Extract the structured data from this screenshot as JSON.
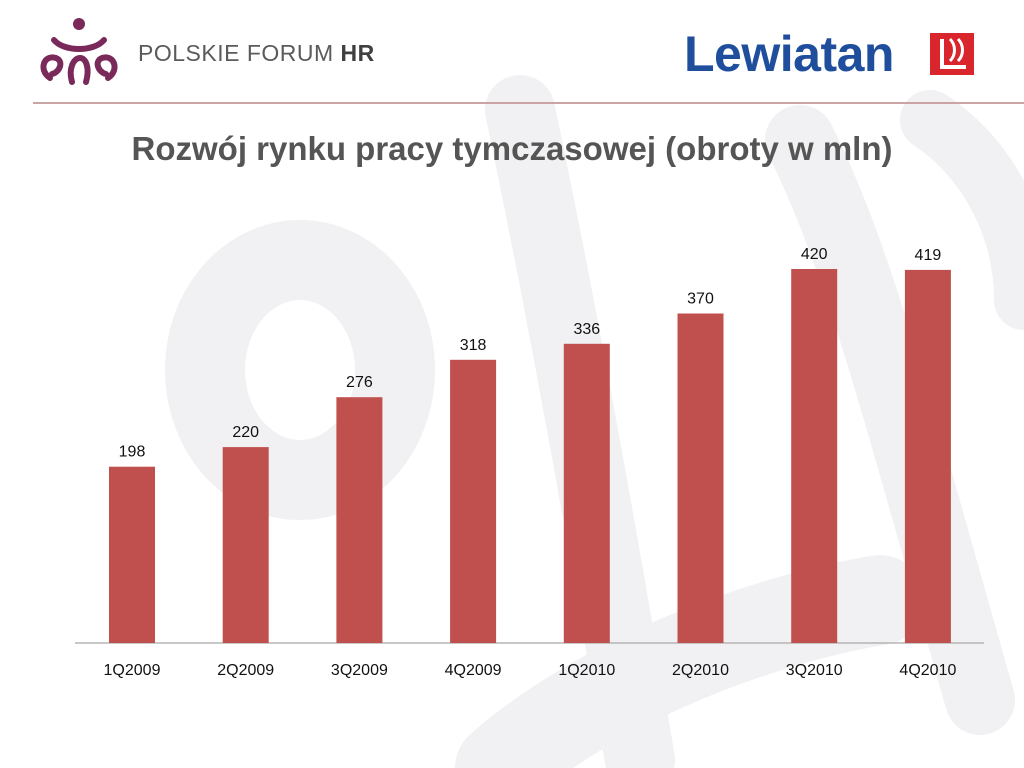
{
  "header": {
    "left_brand": "POLSKIE FORUM",
    "left_brand_hr": "HR",
    "right_brand": "Lewiatan",
    "left_logo_icon": "polskie-forum-hr-logo-icon",
    "right_logo_icon": "lewiatan-flag-logo-icon"
  },
  "colors": {
    "bar": "#c0504d",
    "title": "#555555",
    "brand_blue": "#1f4f9c",
    "brand_purple": "#7a2a5a",
    "brand_red": "#d9262c"
  },
  "chart_data": {
    "type": "bar",
    "title": "Rozwój rynku pracy tymczasowej (obroty w mln)",
    "categories": [
      "1Q2009",
      "2Q2009",
      "3Q2009",
      "4Q2009",
      "1Q2010",
      "2Q2010",
      "3Q2010",
      "4Q2010"
    ],
    "values": [
      198,
      220,
      276,
      318,
      336,
      370,
      420,
      419
    ],
    "data_labels": [
      "198",
      "220",
      "276",
      "318",
      "336",
      "370",
      "420",
      "419"
    ],
    "xlabel": "",
    "ylabel": "",
    "ylim": [
      0,
      420
    ],
    "grid": false,
    "legend": "none"
  }
}
